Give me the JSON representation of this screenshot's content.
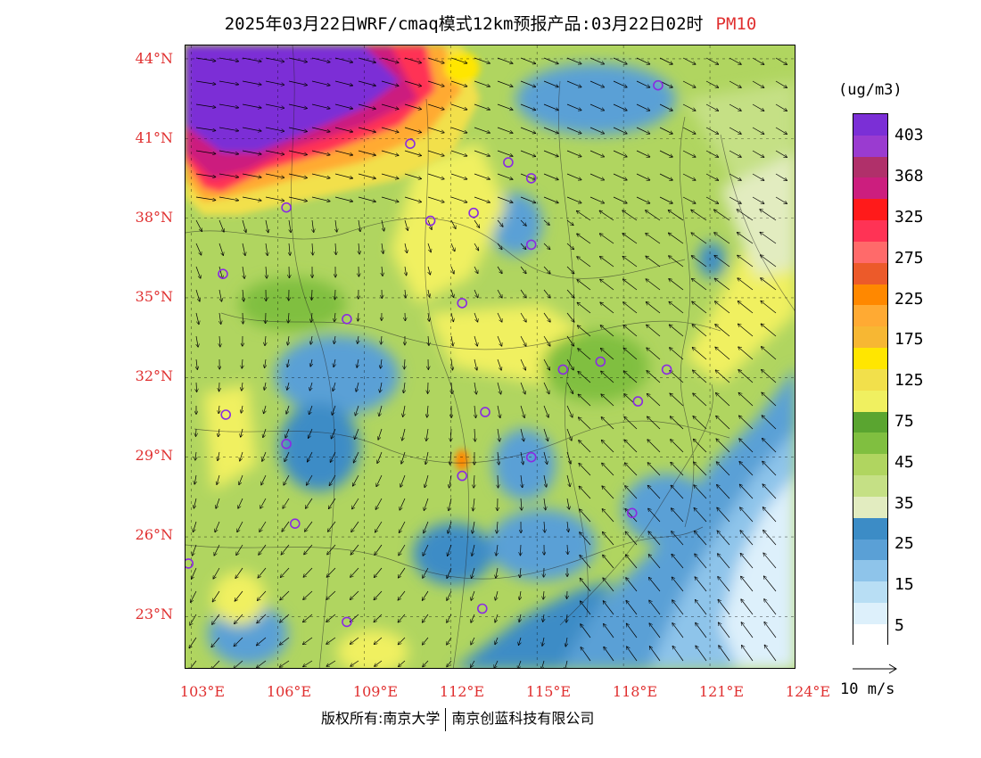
{
  "title": {
    "main": "2025年03月22日WRF/cmaq模式12km预报产品:03月22日02时",
    "pollutant": "PM10"
  },
  "axes": {
    "lat_labels": [
      "44°N",
      "41°N",
      "38°N",
      "35°N",
      "32°N",
      "29°N",
      "26°N",
      "23°N"
    ],
    "lon_labels": [
      "103°E",
      "106°E",
      "109°E",
      "112°E",
      "115°E",
      "118°E",
      "121°E",
      "124°E"
    ],
    "lat_range": [
      21.0,
      44.5
    ],
    "lon_range": [
      102.8,
      124.0
    ]
  },
  "colorbar": {
    "unit": "(ug/m3)",
    "labels": [
      "403",
      "368",
      "325",
      "275",
      "225",
      "175",
      "125",
      "75",
      "45",
      "35",
      "25",
      "15",
      "5"
    ],
    "colors": [
      "#7b2fd6",
      "#9a3bd0",
      "#b0306a",
      "#cc1e7e",
      "#ff1a1a",
      "#ff3355",
      "#ff6a6a",
      "#ec5a2a",
      "#ff8800",
      "#ffaa33",
      "#f7b733",
      "#ffe600",
      "#f2e04b",
      "#f0f060",
      "#5aa530",
      "#80bf40",
      "#b0d560",
      "#c5e085",
      "#e2ecc0",
      "#3c8cc6",
      "#5aa0d6",
      "#8ec4ea",
      "#b8def4",
      "#ddf0fb",
      "#ffffff"
    ]
  },
  "wind_reference": {
    "label": "10 m/s"
  },
  "cities": [
    {
      "lon": 119.2,
      "lat": 43.0
    },
    {
      "lon": 110.6,
      "lat": 40.8
    },
    {
      "lon": 114.0,
      "lat": 40.1
    },
    {
      "lon": 114.8,
      "lat": 39.5
    },
    {
      "lon": 106.3,
      "lat": 38.4
    },
    {
      "lon": 111.3,
      "lat": 37.9
    },
    {
      "lon": 112.8,
      "lat": 38.2
    },
    {
      "lon": 114.8,
      "lat": 37.0
    },
    {
      "lon": 104.1,
      "lat": 35.9
    },
    {
      "lon": 112.4,
      "lat": 34.8
    },
    {
      "lon": 108.4,
      "lat": 34.2
    },
    {
      "lon": 115.9,
      "lat": 32.3
    },
    {
      "lon": 117.2,
      "lat": 32.6
    },
    {
      "lon": 119.5,
      "lat": 32.3
    },
    {
      "lon": 104.2,
      "lat": 30.6
    },
    {
      "lon": 113.2,
      "lat": 30.7
    },
    {
      "lon": 118.5,
      "lat": 31.1
    },
    {
      "lon": 106.3,
      "lat": 29.5
    },
    {
      "lon": 112.4,
      "lat": 28.3
    },
    {
      "lon": 114.8,
      "lat": 29.0
    },
    {
      "lon": 106.6,
      "lat": 26.5
    },
    {
      "lon": 118.3,
      "lat": 26.9
    },
    {
      "lon": 102.9,
      "lat": 25.0
    },
    {
      "lon": 108.4,
      "lat": 22.8
    },
    {
      "lon": 113.1,
      "lat": 23.3
    }
  ],
  "copyright": {
    "left": "版权所有:南京大学",
    "right": "南京创蓝科技有限公司"
  }
}
